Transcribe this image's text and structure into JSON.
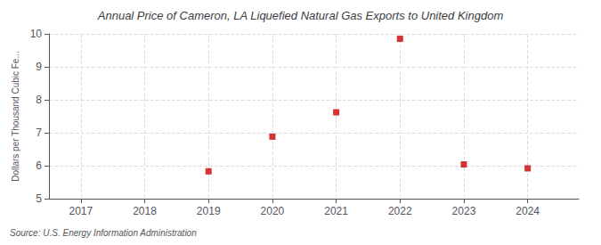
{
  "chart_data": {
    "type": "scatter",
    "title": "Annual Price of Cameron, LA Liquefied Natural Gas Exports to United Kingdom",
    "ylabel": "Dollars per Thousand Cubic Fe...",
    "source": "Source: U.S. Energy Information Administration",
    "x": [
      2019,
      2020,
      2021,
      2022,
      2023,
      2024
    ],
    "values": [
      5.83,
      6.88,
      7.62,
      9.85,
      6.04,
      5.92
    ],
    "color": "#cc0000",
    "marker": "square",
    "xlim": [
      2016.5,
      2024.8
    ],
    "xticks": [
      2017,
      2018,
      2019,
      2020,
      2021,
      2022,
      2023,
      2024
    ],
    "ylim": [
      5,
      10
    ],
    "yticks": [
      5,
      6,
      7,
      8,
      9,
      10
    ],
    "grid": true
  }
}
